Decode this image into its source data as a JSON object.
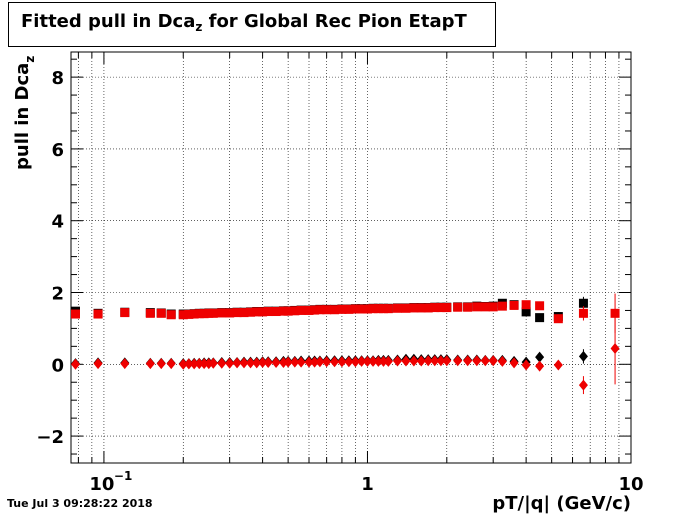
{
  "title": {
    "main": "Fitted pull in Dca",
    "sub": "z",
    "rest": " for Global Rec Pion EtapT"
  },
  "timestamp": "Tue Jul  3 09:28:22 2018",
  "chart_data": {
    "type": "scatter",
    "title": "Fitted pull in Dca_z for Global Rec Pion EtapT",
    "xlabel": "pT/|q| (GeV/c)",
    "ylabel_main": "pull in Dca",
    "ylabel_sub": "z",
    "xscale": "log",
    "xlim": [
      0.075,
      10
    ],
    "ylim": [
      -2.75,
      8.7
    ],
    "grid": true,
    "x_ticks": [
      {
        "value": 0.1,
        "label": "10",
        "exp": "−1"
      },
      {
        "value": 1,
        "label": "1",
        "exp": ""
      },
      {
        "value": 10,
        "label": "10",
        "exp": ""
      }
    ],
    "y_ticks": [
      {
        "value": -2,
        "label": "−2"
      },
      {
        "value": 0,
        "label": "0"
      },
      {
        "value": 2,
        "label": "2"
      },
      {
        "value": 4,
        "label": "4"
      },
      {
        "value": 6,
        "label": "6"
      },
      {
        "value": 8,
        "label": "8"
      }
    ],
    "series": [
      {
        "color": "#000000",
        "marker": "square",
        "points": [
          [
            0.078,
            1.48
          ],
          [
            0.095,
            1.42
          ],
          [
            0.12,
            1.45
          ],
          [
            0.15,
            1.44
          ],
          [
            0.165,
            1.43
          ],
          [
            0.18,
            1.4
          ],
          [
            0.2,
            1.4
          ],
          [
            0.21,
            1.4
          ],
          [
            0.22,
            1.41
          ],
          [
            0.23,
            1.42
          ],
          [
            0.24,
            1.42
          ],
          [
            0.25,
            1.43
          ],
          [
            0.26,
            1.43
          ],
          [
            0.28,
            1.44
          ],
          [
            0.3,
            1.44
          ],
          [
            0.32,
            1.45
          ],
          [
            0.34,
            1.45
          ],
          [
            0.36,
            1.46
          ],
          [
            0.38,
            1.47
          ],
          [
            0.4,
            1.47
          ],
          [
            0.42,
            1.48
          ],
          [
            0.45,
            1.48
          ],
          [
            0.48,
            1.49
          ],
          [
            0.5,
            1.49
          ],
          [
            0.53,
            1.5
          ],
          [
            0.56,
            1.51
          ],
          [
            0.6,
            1.51
          ],
          [
            0.63,
            1.52
          ],
          [
            0.66,
            1.53
          ],
          [
            0.7,
            1.53
          ],
          [
            0.75,
            1.53
          ],
          [
            0.8,
            1.54
          ],
          [
            0.85,
            1.54
          ],
          [
            0.9,
            1.55
          ],
          [
            0.95,
            1.55
          ],
          [
            1.0,
            1.55
          ],
          [
            1.05,
            1.56
          ],
          [
            1.1,
            1.56
          ],
          [
            1.15,
            1.56
          ],
          [
            1.2,
            1.56
          ],
          [
            1.3,
            1.57
          ],
          [
            1.4,
            1.57
          ],
          [
            1.5,
            1.58
          ],
          [
            1.6,
            1.58
          ],
          [
            1.7,
            1.58
          ],
          [
            1.8,
            1.59
          ],
          [
            1.9,
            1.59
          ],
          [
            2.0,
            1.59
          ],
          [
            2.2,
            1.6
          ],
          [
            2.4,
            1.6
          ],
          [
            2.6,
            1.62
          ],
          [
            2.8,
            1.61
          ],
          [
            3.0,
            1.62
          ],
          [
            3.25,
            1.7
          ],
          [
            3.6,
            1.66
          ],
          [
            4.0,
            1.46
          ],
          [
            4.5,
            1.3
          ],
          [
            5.3,
            1.33
          ],
          [
            6.6,
            1.7
          ]
        ],
        "xerr": 0.4,
        "yerr": [
          0,
          0,
          0,
          0,
          0,
          0,
          0,
          0,
          0,
          0,
          0,
          0,
          0,
          0,
          0,
          0,
          0,
          0,
          0,
          0,
          0,
          0,
          0,
          0,
          0,
          0,
          0,
          0,
          0,
          0,
          0,
          0,
          0,
          0,
          0,
          0,
          0,
          0,
          0,
          0,
          0,
          0,
          0,
          0,
          0,
          0,
          0,
          0,
          0,
          0,
          0,
          0,
          0,
          0.05,
          0.06,
          0.07,
          0.09,
          0.12,
          0.18
        ]
      },
      {
        "color": "#ee0000",
        "marker": "square",
        "points": [
          [
            0.078,
            1.4
          ],
          [
            0.095,
            1.4
          ],
          [
            0.12,
            1.44
          ],
          [
            0.15,
            1.42
          ],
          [
            0.165,
            1.42
          ],
          [
            0.18,
            1.38
          ],
          [
            0.2,
            1.38
          ],
          [
            0.21,
            1.39
          ],
          [
            0.22,
            1.4
          ],
          [
            0.23,
            1.41
          ],
          [
            0.24,
            1.41
          ],
          [
            0.25,
            1.42
          ],
          [
            0.26,
            1.42
          ],
          [
            0.28,
            1.43
          ],
          [
            0.3,
            1.43
          ],
          [
            0.32,
            1.44
          ],
          [
            0.34,
            1.44
          ],
          [
            0.36,
            1.45
          ],
          [
            0.38,
            1.46
          ],
          [
            0.4,
            1.46
          ],
          [
            0.42,
            1.47
          ],
          [
            0.45,
            1.47
          ],
          [
            0.48,
            1.48
          ],
          [
            0.5,
            1.48
          ],
          [
            0.53,
            1.49
          ],
          [
            0.56,
            1.5
          ],
          [
            0.6,
            1.5
          ],
          [
            0.63,
            1.51
          ],
          [
            0.66,
            1.52
          ],
          [
            0.7,
            1.52
          ],
          [
            0.75,
            1.52
          ],
          [
            0.8,
            1.53
          ],
          [
            0.85,
            1.53
          ],
          [
            0.9,
            1.54
          ],
          [
            0.95,
            1.54
          ],
          [
            1.0,
            1.54
          ],
          [
            1.05,
            1.55
          ],
          [
            1.1,
            1.55
          ],
          [
            1.15,
            1.55
          ],
          [
            1.2,
            1.55
          ],
          [
            1.3,
            1.56
          ],
          [
            1.4,
            1.56
          ],
          [
            1.5,
            1.57
          ],
          [
            1.6,
            1.57
          ],
          [
            1.7,
            1.57
          ],
          [
            1.8,
            1.58
          ],
          [
            1.9,
            1.58
          ],
          [
            2.0,
            1.58
          ],
          [
            2.2,
            1.59
          ],
          [
            2.4,
            1.59
          ],
          [
            2.6,
            1.6
          ],
          [
            2.8,
            1.6
          ],
          [
            3.0,
            1.6
          ],
          [
            3.25,
            1.62
          ],
          [
            3.6,
            1.64
          ],
          [
            4.0,
            1.66
          ],
          [
            4.5,
            1.63
          ],
          [
            5.3,
            1.27
          ],
          [
            6.6,
            1.42
          ],
          [
            8.7,
            1.42
          ]
        ],
        "xerr": 0.4,
        "yerr": [
          0,
          0,
          0,
          0,
          0,
          0,
          0,
          0,
          0,
          0,
          0,
          0,
          0,
          0,
          0,
          0,
          0,
          0,
          0,
          0,
          0,
          0,
          0,
          0,
          0,
          0,
          0,
          0,
          0,
          0,
          0,
          0,
          0,
          0,
          0,
          0,
          0,
          0,
          0,
          0,
          0,
          0,
          0,
          0,
          0,
          0,
          0,
          0,
          0,
          0,
          0,
          0,
          0,
          0.05,
          0.05,
          0.06,
          0.08,
          0.12,
          0.2,
          0.55
        ]
      },
      {
        "color": "#000000",
        "marker": "diamond",
        "points": [
          [
            0.078,
            0.02
          ],
          [
            0.095,
            0.04
          ],
          [
            0.12,
            0.04
          ],
          [
            0.15,
            0.03
          ],
          [
            0.165,
            0.03
          ],
          [
            0.18,
            0.03
          ],
          [
            0.2,
            0.02
          ],
          [
            0.21,
            0.02
          ],
          [
            0.22,
            0.03
          ],
          [
            0.23,
            0.03
          ],
          [
            0.24,
            0.04
          ],
          [
            0.25,
            0.04
          ],
          [
            0.26,
            0.04
          ],
          [
            0.28,
            0.05
          ],
          [
            0.3,
            0.05
          ],
          [
            0.32,
            0.05
          ],
          [
            0.34,
            0.06
          ],
          [
            0.36,
            0.06
          ],
          [
            0.38,
            0.06
          ],
          [
            0.4,
            0.07
          ],
          [
            0.42,
            0.07
          ],
          [
            0.45,
            0.07
          ],
          [
            0.48,
            0.08
          ],
          [
            0.5,
            0.08
          ],
          [
            0.53,
            0.08
          ],
          [
            0.56,
            0.09
          ],
          [
            0.6,
            0.09
          ],
          [
            0.63,
            0.09
          ],
          [
            0.66,
            0.09
          ],
          [
            0.7,
            0.1
          ],
          [
            0.75,
            0.1
          ],
          [
            0.8,
            0.1
          ],
          [
            0.85,
            0.1
          ],
          [
            0.9,
            0.1
          ],
          [
            0.95,
            0.1
          ],
          [
            1.0,
            0.1
          ],
          [
            1.05,
            0.1
          ],
          [
            1.1,
            0.11
          ],
          [
            1.15,
            0.11
          ],
          [
            1.2,
            0.11
          ],
          [
            1.3,
            0.12
          ],
          [
            1.4,
            0.14
          ],
          [
            1.5,
            0.14
          ],
          [
            1.6,
            0.13
          ],
          [
            1.7,
            0.13
          ],
          [
            1.8,
            0.13
          ],
          [
            1.9,
            0.13
          ],
          [
            2.0,
            0.13
          ],
          [
            2.2,
            0.12
          ],
          [
            2.4,
            0.12
          ],
          [
            2.6,
            0.12
          ],
          [
            2.8,
            0.11
          ],
          [
            3.0,
            0.11
          ],
          [
            3.25,
            0.11
          ],
          [
            3.6,
            0.08
          ],
          [
            4.0,
            0.06
          ],
          [
            4.5,
            0.2
          ],
          [
            6.6,
            0.22
          ]
        ],
        "xerr": 0.4,
        "yerr": [
          0,
          0,
          0,
          0,
          0,
          0,
          0,
          0,
          0,
          0,
          0,
          0,
          0,
          0,
          0,
          0,
          0,
          0,
          0,
          0,
          0,
          0,
          0,
          0,
          0,
          0,
          0,
          0,
          0,
          0,
          0,
          0,
          0,
          0,
          0,
          0,
          0,
          0,
          0,
          0,
          0,
          0,
          0,
          0,
          0,
          0,
          0,
          0,
          0,
          0,
          0,
          0,
          0,
          0.05,
          0.06,
          0.07,
          0.09,
          0.2
        ]
      },
      {
        "color": "#ee0000",
        "marker": "diamond",
        "points": [
          [
            0.078,
            0.0
          ],
          [
            0.095,
            0.02
          ],
          [
            0.12,
            0.02
          ],
          [
            0.15,
            0.02
          ],
          [
            0.165,
            0.02
          ],
          [
            0.18,
            0.02
          ],
          [
            0.2,
            0.0
          ],
          [
            0.21,
            0.01
          ],
          [
            0.22,
            0.01
          ],
          [
            0.23,
            0.02
          ],
          [
            0.24,
            0.02
          ],
          [
            0.25,
            0.02
          ],
          [
            0.26,
            0.03
          ],
          [
            0.28,
            0.03
          ],
          [
            0.3,
            0.03
          ],
          [
            0.32,
            0.04
          ],
          [
            0.34,
            0.04
          ],
          [
            0.36,
            0.04
          ],
          [
            0.38,
            0.04
          ],
          [
            0.4,
            0.05
          ],
          [
            0.42,
            0.05
          ],
          [
            0.45,
            0.05
          ],
          [
            0.48,
            0.05
          ],
          [
            0.5,
            0.06
          ],
          [
            0.53,
            0.06
          ],
          [
            0.56,
            0.06
          ],
          [
            0.6,
            0.06
          ],
          [
            0.63,
            0.06
          ],
          [
            0.66,
            0.07
          ],
          [
            0.7,
            0.07
          ],
          [
            0.75,
            0.07
          ],
          [
            0.8,
            0.07
          ],
          [
            0.85,
            0.07
          ],
          [
            0.9,
            0.07
          ],
          [
            0.95,
            0.08
          ],
          [
            1.0,
            0.08
          ],
          [
            1.05,
            0.08
          ],
          [
            1.1,
            0.08
          ],
          [
            1.15,
            0.08
          ],
          [
            1.2,
            0.08
          ],
          [
            1.3,
            0.09
          ],
          [
            1.4,
            0.09
          ],
          [
            1.5,
            0.09
          ],
          [
            1.6,
            0.09
          ],
          [
            1.7,
            0.1
          ],
          [
            1.8,
            0.1
          ],
          [
            1.9,
            0.1
          ],
          [
            2.0,
            0.1
          ],
          [
            2.2,
            0.1
          ],
          [
            2.4,
            0.1
          ],
          [
            2.6,
            0.1
          ],
          [
            2.8,
            0.1
          ],
          [
            3.0,
            0.1
          ],
          [
            3.25,
            0.08
          ],
          [
            3.6,
            0.04
          ],
          [
            4.0,
            -0.02
          ],
          [
            4.5,
            -0.05
          ],
          [
            5.3,
            -0.02
          ],
          [
            6.6,
            -0.58
          ],
          [
            8.7,
            0.44
          ]
        ],
        "xerr": 0.4,
        "yerr": [
          0,
          0,
          0,
          0,
          0,
          0,
          0,
          0,
          0,
          0,
          0,
          0,
          0,
          0,
          0,
          0,
          0,
          0,
          0,
          0,
          0,
          0,
          0,
          0,
          0,
          0,
          0,
          0,
          0,
          0,
          0,
          0,
          0,
          0,
          0,
          0,
          0,
          0,
          0,
          0,
          0,
          0,
          0,
          0,
          0,
          0,
          0,
          0,
          0,
          0,
          0,
          0,
          0,
          0.05,
          0.05,
          0.06,
          0.08,
          0.12,
          0.25,
          1.0
        ]
      }
    ]
  }
}
